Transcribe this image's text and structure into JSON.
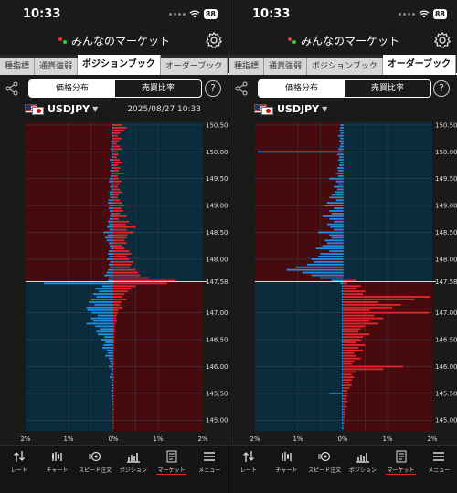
{
  "screens": [
    {
      "status": {
        "time": "10:33",
        "battery": "88"
      },
      "app_title": "みんなのマーケット",
      "tabs": [
        "種指標",
        "通貨強弱",
        "ポジションブック",
        "オーダーブック"
      ],
      "active_tab": 2,
      "segments": [
        "価格分布",
        "売買比率"
      ],
      "active_segment": 0,
      "help": "?",
      "pair": "USDJPY",
      "timestamp": "2025/08/27 10:33",
      "chart_data": {
        "type": "bar",
        "price_labels": [
          "150.50",
          "150.00",
          "149.50",
          "149.00",
          "148.50",
          "148.00",
          "147.58",
          "147.00",
          "146.50",
          "146.00",
          "145.50",
          "145.00"
        ],
        "current_price": 147.58,
        "x_ticks": [
          "2%",
          "1%",
          "0%",
          "1%",
          "2%"
        ],
        "xlim": [
          -2,
          2
        ],
        "levels": [
          150.5,
          150.45,
          150.4,
          150.35,
          150.3,
          150.25,
          150.2,
          150.15,
          150.1,
          150.05,
          150.0,
          149.95,
          149.9,
          149.85,
          149.8,
          149.75,
          149.7,
          149.65,
          149.6,
          149.55,
          149.5,
          149.45,
          149.4,
          149.35,
          149.3,
          149.25,
          149.2,
          149.15,
          149.1,
          149.05,
          149.0,
          148.95,
          148.9,
          148.85,
          148.8,
          148.75,
          148.7,
          148.65,
          148.6,
          148.55,
          148.5,
          148.45,
          148.4,
          148.35,
          148.3,
          148.25,
          148.2,
          148.15,
          148.1,
          148.05,
          148.0,
          147.95,
          147.9,
          147.85,
          147.8,
          147.75,
          147.7,
          147.65,
          147.6,
          147.55,
          147.5,
          147.45,
          147.4,
          147.35,
          147.3,
          147.25,
          147.2,
          147.15,
          147.1,
          147.05,
          147.0,
          146.95,
          146.9,
          146.85,
          146.8,
          146.75,
          146.7,
          146.65,
          146.6,
          146.55,
          146.5,
          146.45,
          146.4,
          146.35,
          146.3,
          146.25,
          146.2,
          146.15,
          146.1,
          146.05,
          146.0,
          145.95,
          145.9,
          145.85,
          145.8,
          145.75,
          145.7,
          145.65,
          145.6,
          145.55,
          145.5,
          145.45,
          145.4,
          145.35,
          145.3,
          145.25,
          145.2,
          145.15,
          145.1,
          145.05,
          145.0,
          144.95,
          144.9,
          144.85
        ],
        "series": [
          {
            "color": "#1e8fe6",
            "values": [
              0.02,
              0.03,
              0.02,
              0.04,
              0.03,
              0.02,
              0.05,
              0.03,
              0.04,
              0.06,
              0.05,
              0.03,
              0.04,
              0.08,
              0.06,
              0.05,
              0.04,
              0.07,
              0.05,
              0.06,
              0.08,
              0.1,
              0.06,
              0.07,
              0.05,
              0.09,
              0.08,
              0.07,
              0.11,
              0.12,
              0.09,
              0.1,
              0.08,
              0.06,
              0.07,
              0.09,
              0.12,
              0.1,
              0.14,
              0.09,
              0.22,
              0.12,
              0.18,
              0.15,
              0.1,
              0.08,
              0.06,
              0.1,
              0.12,
              0.09,
              0.14,
              0.07,
              0.1,
              0.08,
              0.12,
              0.15,
              0.2,
              0.1,
              0.12,
              1.55,
              0.25,
              0.4,
              0.32,
              0.45,
              0.38,
              0.5,
              0.55,
              0.42,
              0.6,
              0.58,
              0.48,
              0.35,
              0.5,
              0.45,
              0.6,
              0.4,
              0.3,
              0.38,
              0.35,
              0.2,
              0.28,
              0.18,
              0.22,
              0.25,
              0.15,
              0.12,
              0.18,
              0.1,
              0.08,
              0.06,
              0.1,
              0.05,
              0.04,
              0.06,
              0.08,
              0.03,
              0.05,
              0.04,
              0.03,
              0.05,
              0.02,
              0.04,
              0.03,
              0.02,
              0.03,
              0.01,
              0.02,
              0.01,
              0.01,
              0.01,
              0.01,
              0.01,
              0.01,
              0.01
            ]
          },
          {
            "color": "#e3262c",
            "values": [
              0.2,
              0.3,
              0.25,
              0.15,
              0.1,
              0.18,
              0.12,
              0.08,
              0.15,
              0.2,
              0.1,
              0.12,
              0.08,
              0.14,
              0.2,
              0.1,
              0.15,
              0.12,
              0.25,
              0.1,
              0.12,
              0.18,
              0.14,
              0.1,
              0.15,
              0.2,
              0.12,
              0.1,
              0.14,
              0.2,
              0.25,
              0.18,
              0.22,
              0.15,
              0.3,
              0.12,
              0.35,
              0.28,
              0.5,
              0.3,
              0.45,
              0.32,
              0.3,
              0.25,
              0.3,
              0.2,
              0.25,
              0.35,
              0.4,
              0.3,
              0.35,
              0.45,
              0.4,
              0.38,
              0.5,
              0.55,
              0.6,
              0.8,
              1.4,
              1.2,
              0.5,
              0.4,
              0.32,
              0.25,
              0.2,
              0.3,
              0.18,
              0.15,
              0.2,
              0.12,
              0.1,
              0.08,
              0.06,
              0.08,
              0.05,
              0.04,
              0.03,
              0.04,
              0.02,
              0.03,
              0.02,
              0.02,
              0.01,
              0.02,
              0.01,
              0.01,
              0.01,
              0.01,
              0.01,
              0.02,
              0.01,
              0.01,
              0.01,
              0.01,
              0.01,
              0.01,
              0.01,
              0.01,
              0.01,
              0.01,
              0.01,
              0.01,
              0.01,
              0.01,
              0.01,
              0.01,
              0.01,
              0.01,
              0.01,
              0.01,
              0.01,
              0.01,
              0.01,
              0.01
            ]
          }
        ]
      }
    },
    {
      "status": {
        "time": "10:33",
        "battery": "88"
      },
      "app_title": "みんなのマーケット",
      "tabs": [
        "種指標",
        "通貨強弱",
        "ポジションブック",
        "オーダーブック"
      ],
      "active_tab": 3,
      "segments": [
        "価格分布",
        "売買比率"
      ],
      "active_segment": 0,
      "help": "?",
      "pair": "USDJPY",
      "timestamp": "",
      "chart_data": {
        "type": "bar",
        "price_labels": [
          "150.50",
          "150.00",
          "149.50",
          "149.00",
          "148.50",
          "148.00",
          "147.58",
          "147.00",
          "146.50",
          "146.00",
          "145.50",
          "145.00"
        ],
        "current_price": 147.58,
        "x_ticks": [
          "2%",
          "1%",
          "0%",
          "1%",
          "2%"
        ],
        "xlim": [
          -2,
          2
        ],
        "levels": [
          150.5,
          150.45,
          150.4,
          150.35,
          150.3,
          150.25,
          150.2,
          150.15,
          150.1,
          150.05,
          150.0,
          149.95,
          149.9,
          149.85,
          149.8,
          149.75,
          149.7,
          149.65,
          149.6,
          149.55,
          149.5,
          149.45,
          149.4,
          149.35,
          149.3,
          149.25,
          149.2,
          149.15,
          149.1,
          149.05,
          149.0,
          148.95,
          148.9,
          148.85,
          148.8,
          148.75,
          148.7,
          148.65,
          148.6,
          148.55,
          148.5,
          148.45,
          148.4,
          148.35,
          148.3,
          148.25,
          148.2,
          148.15,
          148.1,
          148.05,
          148.0,
          147.95,
          147.9,
          147.85,
          147.8,
          147.75,
          147.7,
          147.65,
          147.6,
          147.55,
          147.5,
          147.45,
          147.4,
          147.35,
          147.3,
          147.25,
          147.2,
          147.15,
          147.1,
          147.05,
          147.0,
          146.95,
          146.9,
          146.85,
          146.8,
          146.75,
          146.7,
          146.65,
          146.6,
          146.55,
          146.5,
          146.45,
          146.4,
          146.35,
          146.3,
          146.25,
          146.2,
          146.15,
          146.1,
          146.05,
          146.0,
          145.95,
          145.9,
          145.85,
          145.8,
          145.75,
          145.7,
          145.65,
          145.6,
          145.55,
          145.5,
          145.45,
          145.4,
          145.35,
          145.3,
          145.25,
          145.2,
          145.15,
          145.1,
          145.05,
          145.0,
          144.95,
          144.9,
          144.85
        ],
        "series": [
          {
            "color": "#1e8fe6",
            "values": [
              0.05,
              0.06,
              0.08,
              0.05,
              0.1,
              0.06,
              0.08,
              0.05,
              0.07,
              0.1,
              1.9,
              0.12,
              0.08,
              0.1,
              0.06,
              0.08,
              0.12,
              0.1,
              0.15,
              0.1,
              0.3,
              0.15,
              0.1,
              0.2,
              0.12,
              0.18,
              0.25,
              0.3,
              0.15,
              0.35,
              0.4,
              0.2,
              0.3,
              0.25,
              0.45,
              0.3,
              0.2,
              0.35,
              0.28,
              0.2,
              0.55,
              0.3,
              0.25,
              0.4,
              0.35,
              0.45,
              0.6,
              0.3,
              0.5,
              0.55,
              0.7,
              0.65,
              0.8,
              1.05,
              1.25,
              0.9,
              0.7,
              0.5,
              0.25,
              0.05,
              0.02,
              0.02,
              0.03,
              0.02,
              0.02,
              0.03,
              0.02,
              0.02,
              0.02,
              0.02,
              0.02,
              0.02,
              0.02,
              0.02,
              0.02,
              0.02,
              0.02,
              0.02,
              0.02,
              0.02,
              0.02,
              0.02,
              0.02,
              0.02,
              0.02,
              0.02,
              0.02,
              0.02,
              0.02,
              0.02,
              0.02,
              0.02,
              0.02,
              0.02,
              0.02,
              0.02,
              0.02,
              0.02,
              0.02,
              0.02,
              0.3,
              0.02,
              0.02,
              0.02,
              0.02,
              0.02,
              0.02,
              0.02,
              0.02,
              0.02,
              0.02,
              0.02,
              0.02,
              0.02
            ]
          },
          {
            "color": "#e3262c",
            "values": [
              0.02,
              0.02,
              0.02,
              0.02,
              0.02,
              0.02,
              0.02,
              0.02,
              0.02,
              0.02,
              0.02,
              0.02,
              0.02,
              0.02,
              0.02,
              0.02,
              0.02,
              0.02,
              0.02,
              0.02,
              0.02,
              0.02,
              0.02,
              0.02,
              0.02,
              0.02,
              0.02,
              0.02,
              0.02,
              0.02,
              0.02,
              0.02,
              0.02,
              0.02,
              0.02,
              0.02,
              0.02,
              0.02,
              0.02,
              0.02,
              0.02,
              0.02,
              0.02,
              0.02,
              0.02,
              0.02,
              0.02,
              0.02,
              0.02,
              0.02,
              0.02,
              0.02,
              0.02,
              0.02,
              0.02,
              0.02,
              0.02,
              0.02,
              0.3,
              0.1,
              0.4,
              0.3,
              0.5,
              0.45,
              1.95,
              1.6,
              0.8,
              1.3,
              1.1,
              0.6,
              1.92,
              0.7,
              0.9,
              0.6,
              0.8,
              0.5,
              0.4,
              0.35,
              0.6,
              0.45,
              0.4,
              0.3,
              0.5,
              0.35,
              0.45,
              0.25,
              0.3,
              0.4,
              0.25,
              0.2,
              1.35,
              0.9,
              0.3,
              0.2,
              0.25,
              0.2,
              0.15,
              0.2,
              0.15,
              0.1,
              0.12,
              0.1,
              0.08,
              0.1,
              0.06,
              0.08,
              0.05,
              0.05,
              0.06,
              0.04,
              0.03,
              0.03,
              0.02,
              0.02
            ]
          }
        ]
      }
    }
  ],
  "nav": [
    "レート",
    "チャート",
    "スピード注文",
    "ポジション",
    "マーケット",
    "メニュー"
  ],
  "active_nav": 4,
  "colors": {
    "sell_zone": "#470b0f",
    "buy_zone": "#0a2b3b",
    "sell": "#e3262c",
    "buy": "#1e8fe6",
    "nav_underline": "#e22"
  }
}
